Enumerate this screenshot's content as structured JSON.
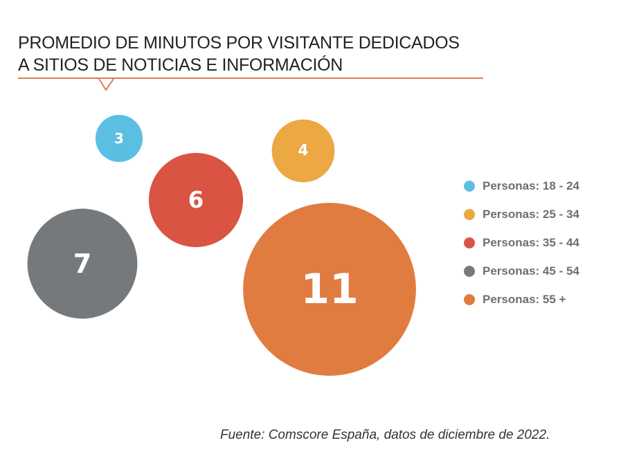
{
  "chart_data": {
    "type": "bubble",
    "title": "PROMEDIO DE MINUTOS POR VISITANTE DEDICADOS A SITIOS DE NOTICIAS E INFORMACIÓN",
    "title_lines": [
      "PROMEDIO DE MINUTOS POR VISITANTE DEDICADOS",
      "A SITIOS DE NOTICIAS E INFORMACIÓN"
    ],
    "series": [
      {
        "name": "Personas: 18 - 24",
        "value": 3,
        "label": "3",
        "color": "#5bbfe3"
      },
      {
        "name": "Personas: 25 - 34",
        "value": 4,
        "label": "4",
        "color": "#eba843"
      },
      {
        "name": "Personas: 35 - 44",
        "value": 6,
        "label": "6",
        "color": "#d95443"
      },
      {
        "name": "Personas: 45 - 54",
        "value": 7,
        "label": "7",
        "color": "#76797c"
      },
      {
        "name": "Personas: 55 +",
        "value": 11,
        "label": "11",
        "color": "#e17c40"
      }
    ],
    "legend_position": "right",
    "source": "Fuente: Comscore España, datos de diciembre de 2022."
  },
  "accent_color": "#d9804a"
}
